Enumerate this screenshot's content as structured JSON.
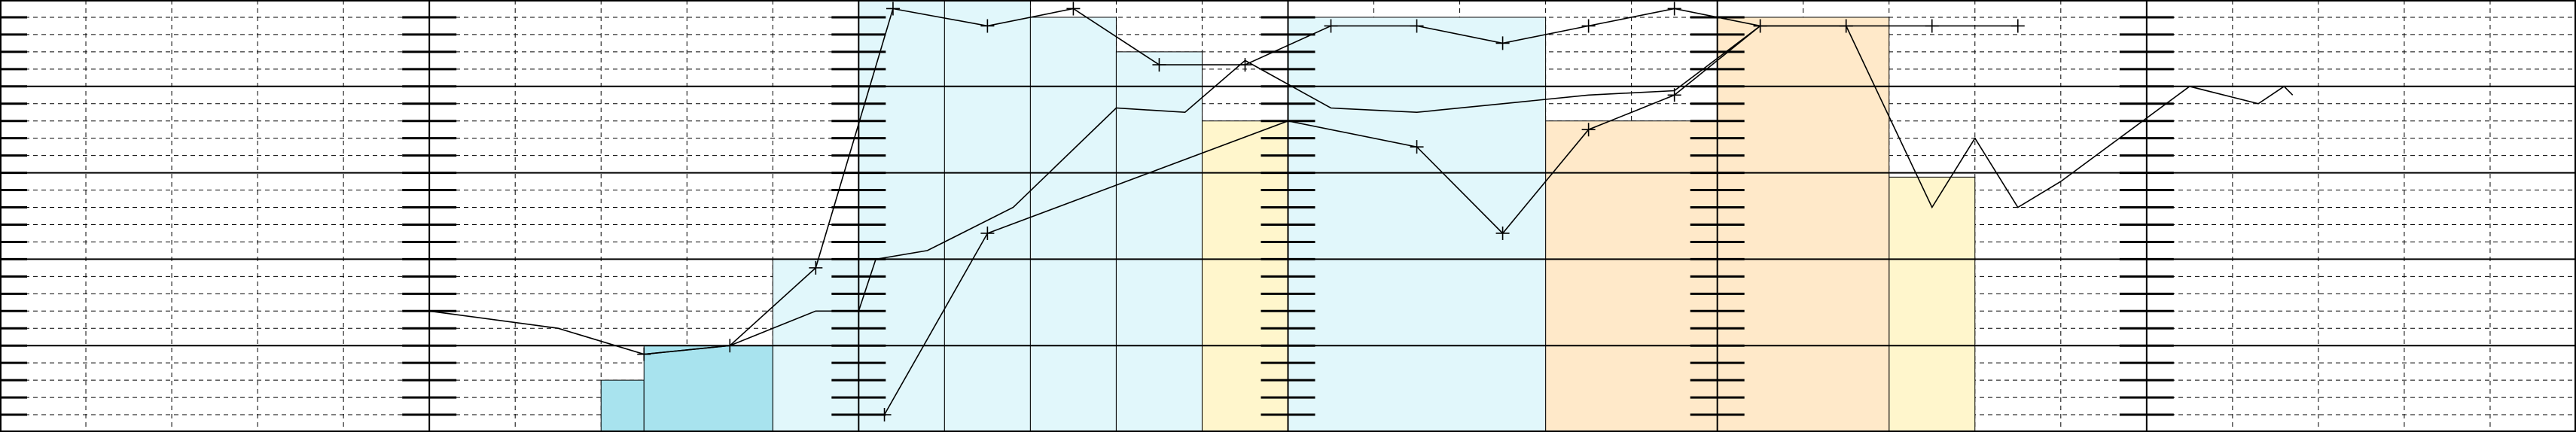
{
  "chart_data": {
    "type": "area",
    "title": "",
    "xlabel": "",
    "ylabel": "",
    "xlim": [
      0,
      30
    ],
    "ylim": [
      0,
      10
    ],
    "grid": true,
    "colors": {
      "series_a": "#fff6cc",
      "series_b": "#ffe9c9",
      "series_c": "#e1f7fb",
      "series_d": "#a8e3ee",
      "line": "#000000"
    },
    "bars": [
      {
        "name": "",
        "color": "#fff6cc",
        "bins": [
          [
            10,
            11,
            1.2
          ],
          [
            12,
            14,
            6.4
          ],
          [
            14,
            16,
            7.2
          ],
          [
            16,
            17,
            6.7
          ],
          [
            17,
            18,
            4.8
          ],
          [
            18,
            20,
            5.9
          ],
          [
            22,
            23,
            5.9
          ]
        ]
      },
      {
        "name": "",
        "color": "#ffe9c9",
        "bins": [
          [
            11,
            12,
            4.8
          ],
          [
            16,
            17,
            4.8
          ],
          [
            18,
            20,
            7.2
          ],
          [
            20,
            22,
            9.6
          ]
        ]
      },
      {
        "name": "",
        "color": "#e1f7fb",
        "bins": [
          [
            9,
            10,
            4.0
          ],
          [
            10,
            11,
            10.0
          ],
          [
            11,
            12,
            10.0
          ],
          [
            12,
            13,
            9.6
          ],
          [
            13,
            14,
            8.8
          ],
          [
            15,
            18,
            9.6
          ]
        ]
      },
      {
        "name": "",
        "color": "#a8e3ee",
        "bins": [
          [
            7,
            7.5,
            1.2
          ],
          [
            7.5,
            9,
            2.0
          ]
        ]
      }
    ],
    "lines": [
      {
        "name": "",
        "markers": true,
        "points": [
          [
            7.5,
            1.8
          ],
          [
            8.5,
            2.0
          ],
          [
            9.5,
            3.8
          ],
          [
            10.4,
            9.8
          ],
          [
            11.5,
            9.4
          ],
          [
            12.5,
            9.8
          ],
          [
            13.5,
            8.5
          ],
          [
            14.5,
            8.5
          ],
          [
            15.5,
            9.4
          ],
          [
            16.5,
            9.4
          ],
          [
            17.5,
            9.0
          ],
          [
            18.5,
            9.4
          ],
          [
            19.5,
            9.8
          ],
          [
            20.5,
            9.4
          ],
          [
            21.5,
            9.4
          ],
          [
            22.5,
            9.4
          ],
          [
            23.5,
            9.4
          ]
        ]
      },
      {
        "name": "",
        "markers": true,
        "points": [
          [
            10.3,
            0.4
          ],
          [
            11.5,
            4.6
          ],
          [
            15,
            7.2
          ],
          [
            16.5,
            6.6
          ],
          [
            17.5,
            4.6
          ],
          [
            18.5,
            7.0
          ],
          [
            19.5,
            7.8
          ],
          [
            20.5,
            9.4
          ],
          [
            21.5,
            9.4
          ]
        ]
      },
      {
        "name": "",
        "markers": false,
        "points": [
          [
            5,
            2.8
          ],
          [
            6.5,
            2.4
          ],
          [
            7.5,
            1.8
          ],
          [
            8.5,
            2.0
          ],
          [
            9.5,
            2.8
          ],
          [
            10,
            2.8
          ],
          [
            10.2,
            4.0
          ],
          [
            10.8,
            4.2
          ],
          [
            11.8,
            5.2
          ],
          [
            13,
            7.5
          ],
          [
            13.8,
            7.4
          ],
          [
            14.5,
            8.6
          ],
          [
            15.5,
            7.5
          ],
          [
            16.5,
            7.4
          ],
          [
            17.5,
            7.6
          ],
          [
            18.5,
            7.8
          ],
          [
            19.5,
            7.9
          ],
          [
            20.5,
            9.4
          ]
        ]
      },
      {
        "name": "",
        "markers": false,
        "points": [
          [
            21.5,
            9.4
          ],
          [
            22.5,
            5.2
          ],
          [
            23,
            6.8
          ],
          [
            23.5,
            5.2
          ],
          [
            24,
            5.8
          ],
          [
            25.5,
            8.0
          ],
          [
            26.3,
            7.6
          ],
          [
            26.6,
            8.0
          ],
          [
            26.7,
            7.8
          ]
        ]
      }
    ]
  }
}
